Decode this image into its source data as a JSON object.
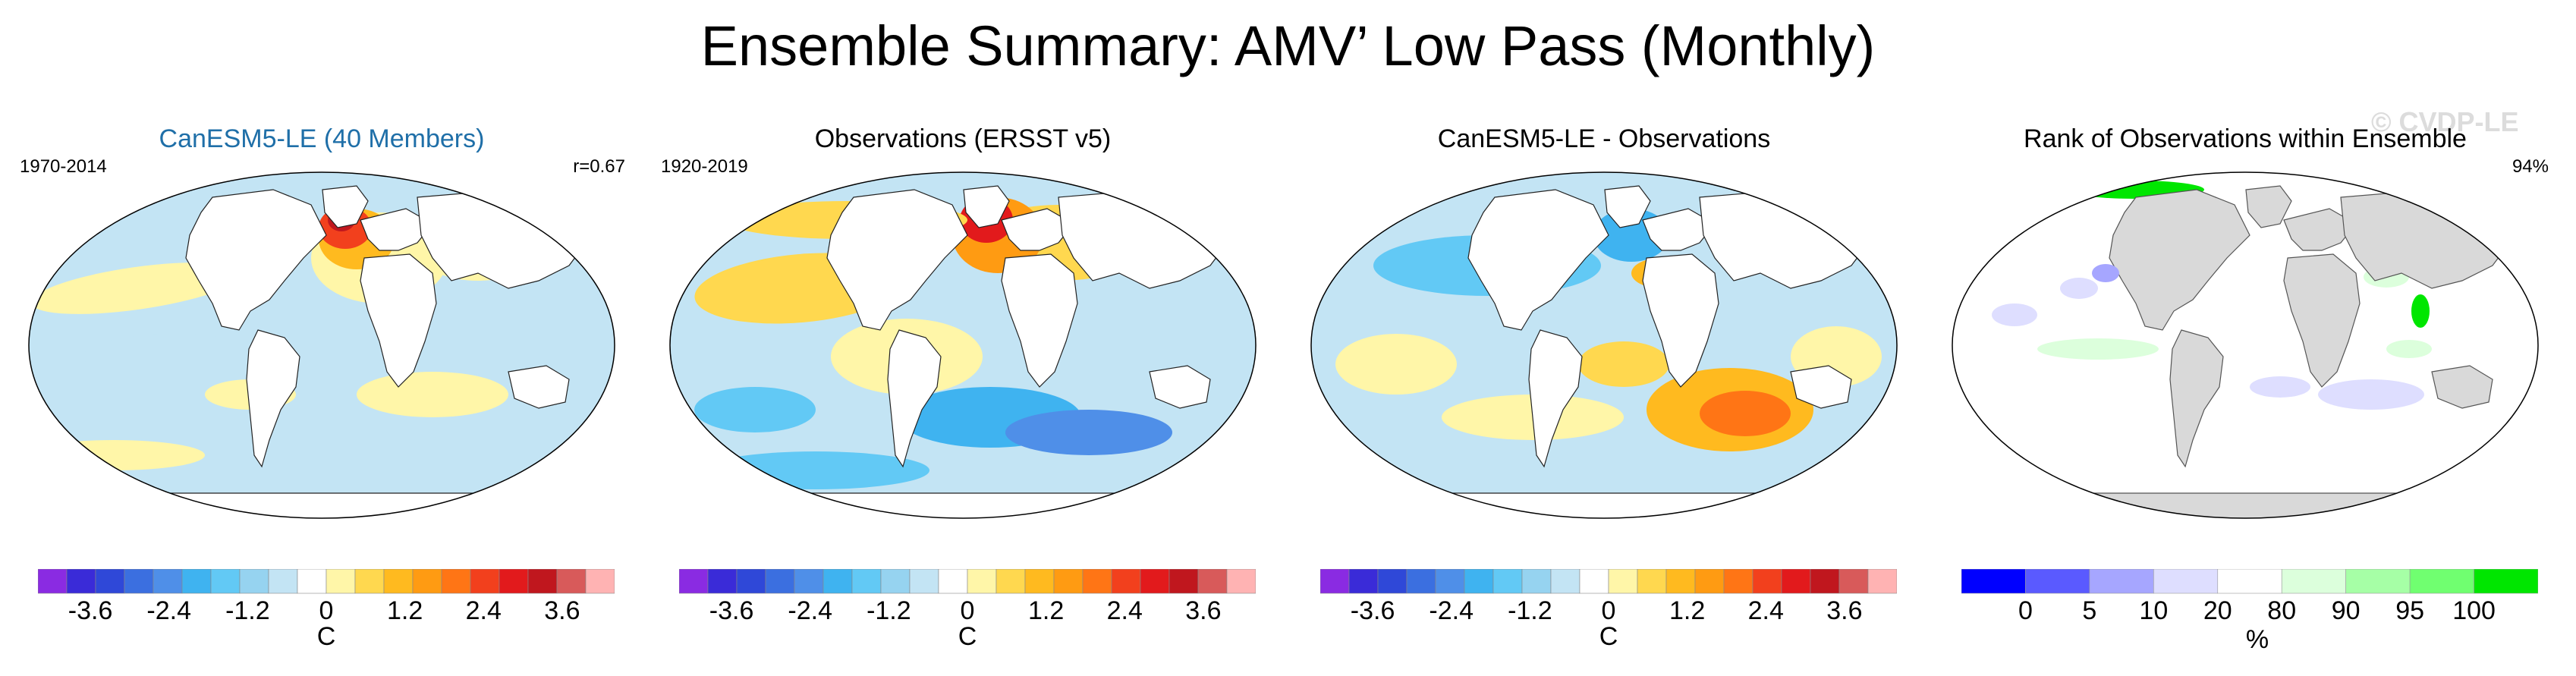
{
  "title": "Ensemble Summary: AMV’ Low Pass (Monthly)",
  "watermark": "© CVDP-LE",
  "colors": {
    "blue_title": "#1f6fa8",
    "temp_scale": [
      "#8a2be2",
      "#3a2bd8",
      "#2f48d8",
      "#3b6fe0",
      "#4f8fe8",
      "#3fb3f0",
      "#62c9f5",
      "#96d3f0",
      "#c3e4f4",
      "#ffffff",
      "#fff6a8",
      "#ffd84f",
      "#ffba1f",
      "#ff9b12",
      "#ff7515",
      "#f2401d",
      "#e21a1c",
      "#c0171e",
      "#d85a5a",
      "#ffb3b3"
    ],
    "rank_scale": [
      "#0000ff",
      "#5a5aff",
      "#a6a6ff",
      "#dedeff",
      "#ffffff",
      "#dcffdc",
      "#a6ffa6",
      "#70ff70",
      "#00e600"
    ],
    "land": "#d9d9d9"
  },
  "chart_data": [
    {
      "type": "heatmap",
      "title": "CanESM5-LE (40 Members)",
      "period": "1970-2014",
      "stat": "r=0.67",
      "colorbar": {
        "label": "C",
        "tick_labels": [
          "-3.6",
          "-2.4",
          "-1.2",
          "0",
          "1.2",
          "2.4",
          "3.6"
        ],
        "range": [
          -4.4,
          4.4
        ]
      }
    },
    {
      "type": "heatmap",
      "title": "Observations (ERSST v5)",
      "period": "1920-2019",
      "stat": "",
      "colorbar": {
        "label": "C",
        "tick_labels": [
          "-3.6",
          "-2.4",
          "-1.2",
          "0",
          "1.2",
          "2.4",
          "3.6"
        ],
        "range": [
          -4.4,
          4.4
        ]
      }
    },
    {
      "type": "heatmap",
      "title": "CanESM5-LE - Observations",
      "period": "",
      "stat": "",
      "colorbar": {
        "label": "C",
        "tick_labels": [
          "-3.6",
          "-2.4",
          "-1.2",
          "0",
          "1.2",
          "2.4",
          "3.6"
        ],
        "range": [
          -4.4,
          4.4
        ]
      }
    },
    {
      "type": "heatmap",
      "title": "Rank of Observations within Ensemble",
      "period": "",
      "stat": "94%",
      "colorbar": {
        "label": "%",
        "tick_labels": [
          "0",
          "5",
          "10",
          "20",
          "80",
          "90",
          "95",
          "100"
        ],
        "boundaries": [
          0,
          5,
          10,
          20,
          80,
          90,
          95,
          100
        ]
      }
    }
  ]
}
